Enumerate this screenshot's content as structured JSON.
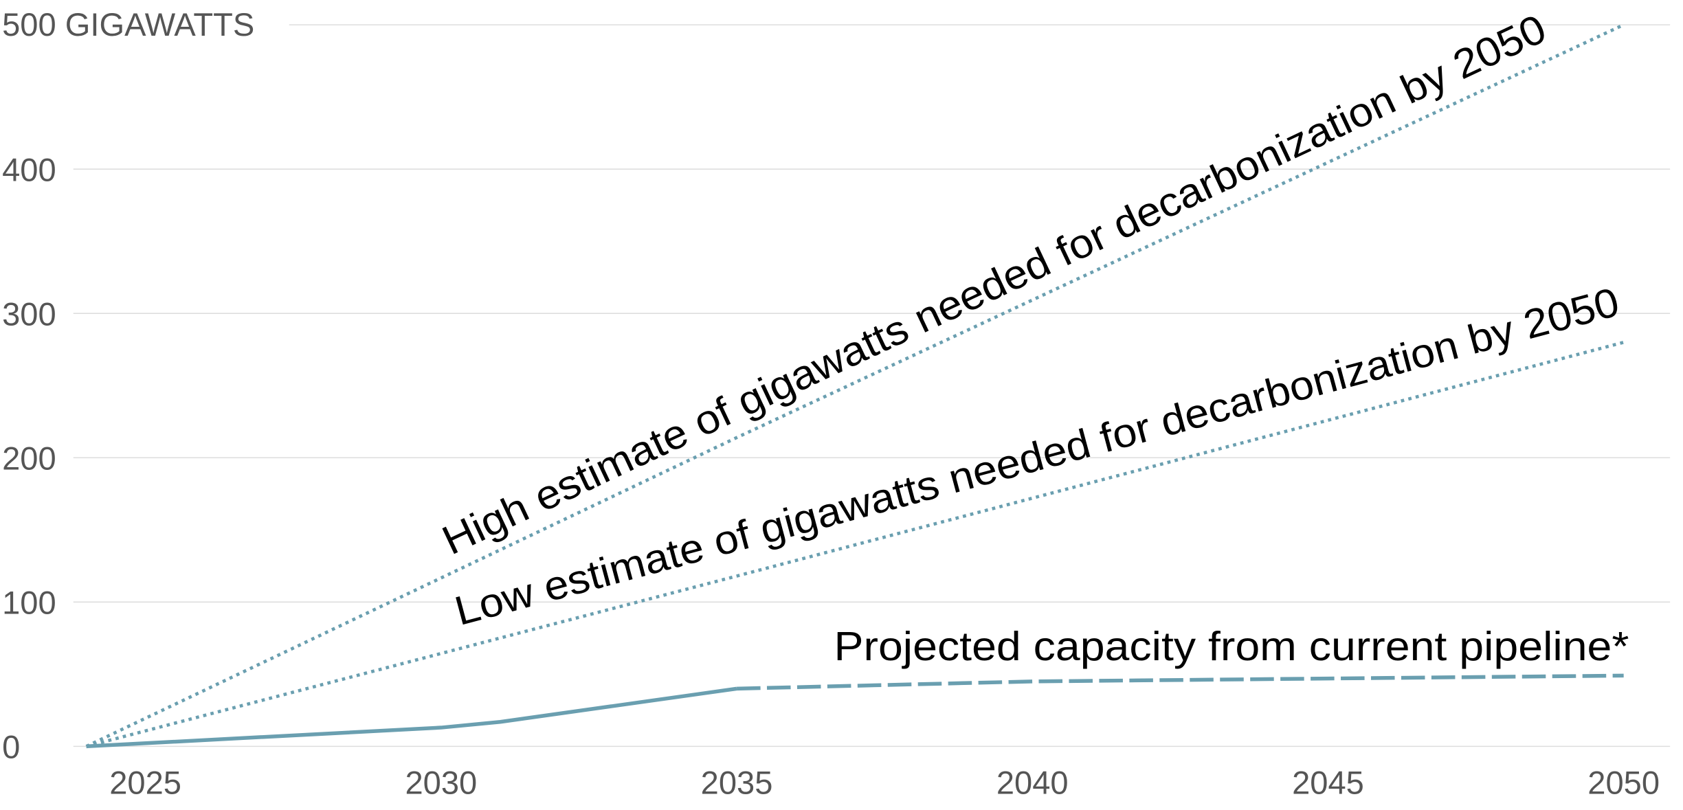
{
  "chart_data": {
    "type": "line",
    "ylabel": "500 GIGAWATTS",
    "xlim": [
      2024,
      2050
    ],
    "ylim": [
      0,
      500
    ],
    "grid": true,
    "x_ticks": [
      "2025",
      "2030",
      "2035",
      "2040",
      "2045",
      "2050"
    ],
    "y_ticks": [
      "0",
      "100",
      "200",
      "300",
      "400"
    ],
    "line_color": "#6a9fb0",
    "series": [
      {
        "name": "High estimate of gigawatts needed for decarbonization by 2050",
        "style": "dotted",
        "points": [
          [
            2024,
            0
          ],
          [
            2035,
            214
          ],
          [
            2050,
            500
          ]
        ]
      },
      {
        "name": "Low estimate of gigawatts needed for decarbonization by 2050",
        "style": "dotted",
        "points": [
          [
            2024,
            0
          ],
          [
            2035,
            118
          ],
          [
            2050,
            280
          ]
        ]
      },
      {
        "name": "Projected capacity from current pipeline*",
        "style": "solid-then-dashed",
        "solid_points": [
          [
            2024,
            0
          ],
          [
            2030,
            13
          ],
          [
            2031,
            17
          ],
          [
            2035,
            40
          ]
        ],
        "dashed_points": [
          [
            2035,
            40
          ],
          [
            2040,
            45
          ],
          [
            2045,
            47
          ],
          [
            2050,
            49
          ]
        ]
      }
    ]
  }
}
